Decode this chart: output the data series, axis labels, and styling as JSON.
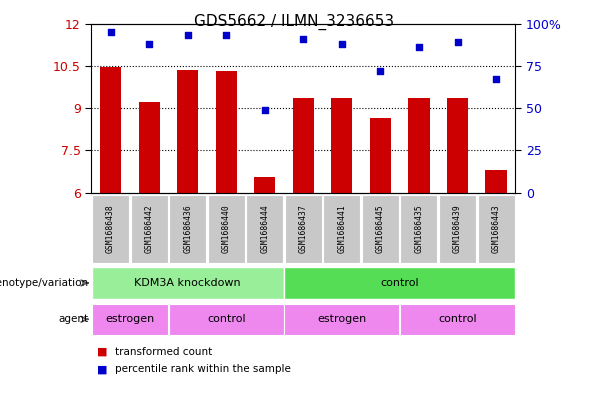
{
  "title": "GDS5662 / ILMN_3236653",
  "samples": [
    "GSM1686438",
    "GSM1686442",
    "GSM1686436",
    "GSM1686440",
    "GSM1686444",
    "GSM1686437",
    "GSM1686441",
    "GSM1686445",
    "GSM1686435",
    "GSM1686439",
    "GSM1686443"
  ],
  "bar_values": [
    10.45,
    9.2,
    10.35,
    10.3,
    6.55,
    9.35,
    9.35,
    8.65,
    9.35,
    9.35,
    6.8
  ],
  "dot_values": [
    95,
    88,
    93,
    93,
    49,
    91,
    88,
    72,
    86,
    89,
    67
  ],
  "ylim_left": [
    6,
    12
  ],
  "ylim_right": [
    0,
    100
  ],
  "yticks_left": [
    6,
    7.5,
    9,
    10.5,
    12
  ],
  "yticks_right": [
    0,
    25,
    50,
    75,
    100
  ],
  "bar_color": "#cc0000",
  "dot_color": "#0000cc",
  "genotype_groups": [
    {
      "label": "KDM3A knockdown",
      "start": 0,
      "end": 5,
      "color": "#99ee99"
    },
    {
      "label": "control",
      "start": 5,
      "end": 11,
      "color": "#55dd55"
    }
  ],
  "agent_groups": [
    {
      "label": "estrogen",
      "start": 0,
      "end": 2,
      "color": "#ee88ee"
    },
    {
      "label": "control",
      "start": 2,
      "end": 5,
      "color": "#ee88ee"
    },
    {
      "label": "estrogen",
      "start": 5,
      "end": 8,
      "color": "#ee88ee"
    },
    {
      "label": "control",
      "start": 8,
      "end": 11,
      "color": "#ee88ee"
    }
  ],
  "xlabel_genotype": "genotype/variation",
  "xlabel_agent": "agent",
  "legend_items": [
    {
      "label": "transformed count",
      "color": "#cc0000"
    },
    {
      "label": "percentile rank within the sample",
      "color": "#0000cc"
    }
  ],
  "tick_label_color_left": "#cc0000",
  "tick_label_color_right": "#0000cc",
  "sample_bg": "#c8c8c8",
  "plot_bg": "#ffffff"
}
